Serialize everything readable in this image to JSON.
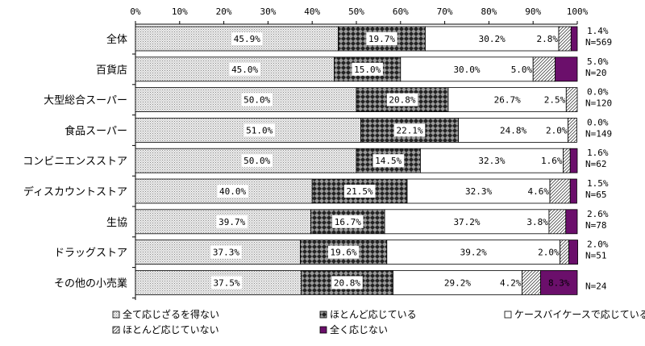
{
  "chart_data": {
    "type": "bar",
    "orientation": "horizontal",
    "stacked": true,
    "xlim": [
      0,
      100
    ],
    "x_ticks": [
      "0%",
      "10%",
      "20%",
      "30%",
      "40%",
      "50%",
      "60%",
      "70%",
      "80%",
      "90%",
      "100%"
    ],
    "grid": false,
    "legend_position": "bottom",
    "categories": [
      "全体",
      "百貨店",
      "大型総合スーパー",
      "食品スーパー",
      "コンビニエンスストア",
      "ディスカウントストア",
      "生協",
      "ドラッグストア",
      "その他の小売業"
    ],
    "n_labels": [
      "N=569",
      "N=20",
      "N=120",
      "N=149",
      "N=62",
      "N=65",
      "N=78",
      "N=51",
      "N=24"
    ],
    "series": [
      {
        "name": "全て応じざるを得ない",
        "color": "#d9d9d9",
        "values": [
          45.9,
          45.0,
          50.0,
          51.0,
          50.0,
          40.0,
          39.7,
          37.3,
          37.5
        ],
        "labels": [
          "45.9%",
          "45.0%",
          "50.0%",
          "51.0%",
          "50.0%",
          "40.0%",
          "39.7%",
          "37.3%",
          "37.5%"
        ]
      },
      {
        "name": "ほとんど応じている",
        "color": "#404040",
        "values": [
          19.7,
          15.0,
          20.8,
          22.1,
          14.5,
          21.5,
          16.7,
          19.6,
          20.8
        ],
        "labels": [
          "19.7%",
          "15.0%",
          "20.8%",
          "22.1%",
          "14.5%",
          "21.5%",
          "16.7%",
          "19.6%",
          "20.8%"
        ]
      },
      {
        "name": "ケースバイケースで応じている",
        "color": "#ffffff",
        "values": [
          30.2,
          30.0,
          26.7,
          24.8,
          32.3,
          32.3,
          37.2,
          39.2,
          29.2
        ],
        "labels": [
          "30.2%",
          "30.0%",
          "26.7%",
          "24.8%",
          "32.3%",
          "32.3%",
          "37.2%",
          "39.2%",
          "29.2%"
        ]
      },
      {
        "name": "ほとんど応じていない",
        "color": "#bfbfbf",
        "values": [
          2.8,
          5.0,
          2.5,
          2.0,
          1.6,
          4.6,
          3.8,
          2.0,
          4.2
        ],
        "labels": [
          "2.8%",
          "5.0%",
          "2.5%",
          "2.0%",
          "1.6%",
          "4.6%",
          "3.8%",
          "2.0%",
          "4.2%"
        ]
      },
      {
        "name": "全く応じない",
        "color": "#6b0f6b",
        "values": [
          1.4,
          5.0,
          0.0,
          0.0,
          1.6,
          1.5,
          2.6,
          2.0,
          8.3
        ],
        "labels": [
          "1.4%",
          "5.0%",
          "0.0%",
          "0.0%",
          "1.6%",
          "1.5%",
          "2.6%",
          "2.0%",
          "8.3%"
        ]
      }
    ]
  }
}
